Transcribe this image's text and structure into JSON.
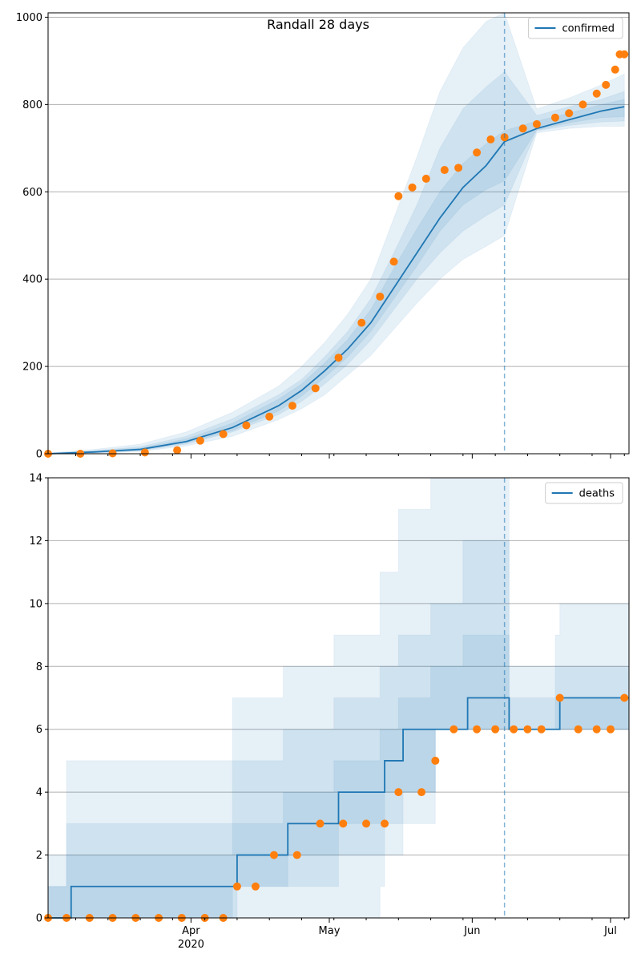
{
  "chart_data": [
    {
      "type": "line",
      "title": "Randall 28 days",
      "xlabel": "",
      "ylabel": "",
      "ylim": [
        0,
        1010
      ],
      "yticks": [
        0,
        200,
        400,
        600,
        800,
        1000
      ],
      "grid": "horizontal",
      "legend_position": "top-right",
      "forecast_start": "2020-06-08",
      "series": [
        {
          "name": "confirmed",
          "color": "#1f77b4",
          "x": [
            "2020-03-01",
            "2020-03-11",
            "2020-03-21",
            "2020-03-31",
            "2020-04-10",
            "2020-04-20",
            "2020-04-25",
            "2020-04-30",
            "2020-05-05",
            "2020-05-10",
            "2020-05-15",
            "2020-05-20",
            "2020-05-25",
            "2020-05-30",
            "2020-06-04",
            "2020-06-08",
            "2020-06-15",
            "2020-06-22",
            "2020-06-29",
            "2020-07-04"
          ],
          "y": [
            0,
            4,
            10,
            28,
            60,
            110,
            145,
            190,
            240,
            300,
            380,
            460,
            540,
            610,
            660,
            715,
            745,
            765,
            785,
            795
          ],
          "bands": [
            {
              "lower": [
                0,
                1,
                5,
                18,
                40,
                78,
                103,
                135,
                180,
                225,
                285,
                345,
                400,
                445,
                475,
                500,
                735,
                745,
                750,
                750
              ],
              "upper": [
                2,
                10,
                22,
                50,
                95,
                155,
                200,
                255,
                320,
                400,
                540,
                680,
                830,
                930,
                990,
                1010,
                790,
                815,
                845,
                870
              ]
            },
            {
              "lower": [
                0,
                2,
                7,
                22,
                50,
                90,
                120,
                160,
                205,
                260,
                330,
                400,
                460,
                510,
                545,
                570,
                740,
                752,
                760,
                762
              ],
              "upper": [
                1,
                7,
                16,
                40,
                80,
                135,
                170,
                222,
                280,
                355,
                460,
                570,
                700,
                790,
                840,
                875,
                775,
                795,
                812,
                830
              ]
            },
            {
              "lower": [
                0,
                3,
                8,
                25,
                53,
                98,
                132,
                175,
                222,
                280,
                355,
                430,
                510,
                570,
                605,
                625,
                742,
                758,
                770,
                772
              ],
              "upper": [
                1,
                6,
                13,
                34,
                70,
                125,
                160,
                208,
                262,
                330,
                425,
                515,
                600,
                665,
                710,
                740,
                762,
                780,
                800,
                812
              ]
            }
          ]
        }
      ],
      "observed": {
        "color": "#ff7f0e",
        "x": [
          "2020-03-01",
          "2020-03-08",
          "2020-03-15",
          "2020-03-22",
          "2020-03-29",
          "2020-04-03",
          "2020-04-08",
          "2020-04-13",
          "2020-04-18",
          "2020-04-23",
          "2020-04-28",
          "2020-05-03",
          "2020-05-08",
          "2020-05-12",
          "2020-05-15",
          "2020-05-16",
          "2020-05-19",
          "2020-05-22",
          "2020-05-26",
          "2020-05-29",
          "2020-06-02",
          "2020-06-05",
          "2020-06-08",
          "2020-06-12",
          "2020-06-15",
          "2020-06-19",
          "2020-06-22",
          "2020-06-25",
          "2020-06-28",
          "2020-06-30",
          "2020-07-02",
          "2020-07-03",
          "2020-07-04"
        ],
        "y": [
          0,
          0,
          1,
          3,
          8,
          30,
          45,
          65,
          85,
          110,
          150,
          220,
          300,
          360,
          440,
          590,
          610,
          630,
          650,
          655,
          690,
          720,
          725,
          745,
          755,
          770,
          780,
          800,
          825,
          845,
          880,
          915,
          915
        ]
      },
      "xticks": [
        {
          "date": "2020-04-01",
          "label": "Apr"
        },
        {
          "date": "2020-05-01",
          "label": "May"
        },
        {
          "date": "2020-06-01",
          "label": "Jun"
        },
        {
          "date": "2020-07-01",
          "label": "Jul"
        }
      ],
      "xlim": [
        "2020-03-01",
        "2020-07-05"
      ]
    },
    {
      "type": "line",
      "title": "",
      "xlabel": "",
      "ylabel": "",
      "ylim": [
        0,
        14
      ],
      "yticks": [
        0,
        2,
        4,
        6,
        8,
        10,
        12,
        14
      ],
      "grid": "horizontal",
      "legend_position": "top-right",
      "forecast_start": "2020-06-08",
      "series": [
        {
          "name": "deaths",
          "color": "#1f77b4",
          "step": true,
          "x": [
            "2020-03-01",
            "2020-03-05",
            "2020-03-06",
            "2020-04-10",
            "2020-04-11",
            "2020-04-21",
            "2020-04-22",
            "2020-05-02",
            "2020-05-03",
            "2020-05-12",
            "2020-05-13",
            "2020-05-16",
            "2020-05-17",
            "2020-05-23",
            "2020-05-24",
            "2020-05-30",
            "2020-05-31",
            "2020-06-08",
            "2020-06-09",
            "2020-06-19",
            "2020-06-20",
            "2020-07-05"
          ],
          "y": [
            0,
            0,
            1,
            1,
            2,
            2,
            3,
            3,
            4,
            4,
            5,
            5,
            6,
            6,
            6,
            6,
            7,
            7,
            6,
            6,
            7,
            7
          ],
          "bands": [
            {
              "lower": [
                0,
                0,
                0,
                0,
                0,
                0,
                0,
                0,
                0,
                0,
                1,
                2,
                2,
                3,
                3,
                6,
                6,
                6,
                6,
                6,
                6,
                6
              ],
              "upper": [
                2,
                5,
                5,
                7,
                7,
                8,
                8,
                9,
                9,
                11,
                11,
                13,
                13,
                14,
                14,
                14,
                14,
                14,
                8,
                9,
                10,
                11
              ]
            },
            {
              "lower": [
                0,
                0,
                0,
                0,
                0,
                1,
                1,
                1,
                1,
                2,
                2,
                3,
                3,
                4,
                4,
                6,
                6,
                6,
                6,
                6,
                6,
                6
              ],
              "upper": [
                1,
                3,
                3,
                5,
                5,
                6,
                6,
                7,
                7,
                8,
                8,
                9,
                9,
                10,
                10,
                12,
                12,
                12,
                7,
                8,
                8,
                9
              ]
            },
            {
              "lower": [
                0,
                0,
                0,
                0,
                1,
                1,
                1,
                2,
                2,
                3,
                3,
                4,
                4,
                4,
                4,
                6,
                6,
                6,
                6,
                6,
                6,
                6
              ],
              "upper": [
                1,
                2,
                2,
                3,
                3,
                4,
                4,
                5,
                5,
                6,
                6,
                7,
                7,
                8,
                8,
                9,
                9,
                9,
                6,
                7,
                7,
                8
              ]
            }
          ]
        }
      ],
      "observed": {
        "color": "#ff7f0e",
        "x": [
          "2020-03-01",
          "2020-03-05",
          "2020-03-10",
          "2020-03-15",
          "2020-03-20",
          "2020-03-25",
          "2020-03-30",
          "2020-04-04",
          "2020-04-08",
          "2020-04-11",
          "2020-04-15",
          "2020-04-19",
          "2020-04-24",
          "2020-04-29",
          "2020-05-04",
          "2020-05-09",
          "2020-05-13",
          "2020-05-16",
          "2020-05-21",
          "2020-05-24",
          "2020-05-28",
          "2020-06-02",
          "2020-06-06",
          "2020-06-10",
          "2020-06-13",
          "2020-06-16",
          "2020-06-20",
          "2020-06-24",
          "2020-06-28",
          "2020-07-01",
          "2020-07-04"
        ],
        "y": [
          0,
          0,
          0,
          0,
          0,
          0,
          0,
          0,
          0,
          1,
          1,
          2,
          2,
          3,
          3,
          3,
          3,
          4,
          4,
          5,
          6,
          6,
          6,
          6,
          6,
          6,
          7,
          6,
          6,
          6,
          7
        ]
      },
      "xticks": [
        {
          "date": "2020-04-01",
          "label": "Apr"
        },
        {
          "date": "2020-05-01",
          "label": "May"
        },
        {
          "date": "2020-06-01",
          "label": "Jun"
        },
        {
          "date": "2020-07-01",
          "label": "Jul"
        }
      ],
      "xyear_label": "2020",
      "xlim": [
        "2020-03-01",
        "2020-07-05"
      ]
    }
  ]
}
